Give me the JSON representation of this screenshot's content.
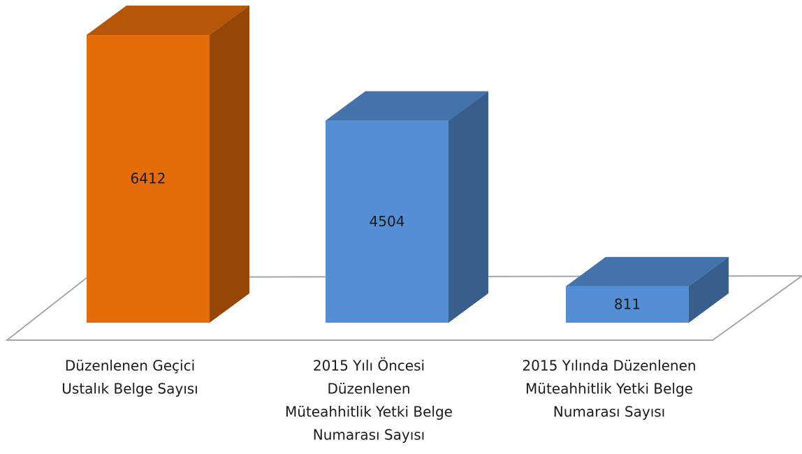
{
  "chart_data": {
    "type": "bar3d",
    "categories": [
      [
        "Düzenlenen Geçici",
        "Ustalık Belge Sayısı"
      ],
      [
        "2015 Yılı Öncesi",
        "Düzenlenen",
        "Müteahhitlik Yetki Belge",
        "Numarası Sayısı"
      ],
      [
        "2015 Yılında Düzenlenen",
        "Müteahhitlik Yetki Belge",
        "Numarası Sayısı"
      ]
    ],
    "values": [
      6412,
      4504,
      811
    ],
    "colors": [
      "#E46C0A",
      "#558ED5",
      "#558ED5"
    ]
  }
}
